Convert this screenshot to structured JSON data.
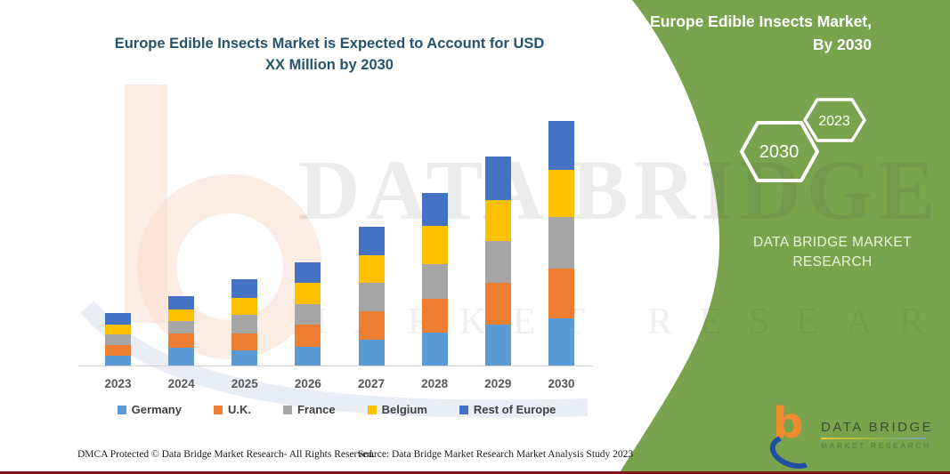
{
  "header": {
    "title_line1": "Europe Edible Insects Market is Expected to Account for USD",
    "title_line2": "XX Million by 2030"
  },
  "panel": {
    "bg_color": "#7AA34D",
    "title_line1": "Europe Edible Insects Market,",
    "title_line2": "By 2030",
    "hexagons": [
      {
        "label": "2030"
      },
      {
        "label": "2023"
      }
    ],
    "brand_caps_line1": "DATA BRIDGE MARKET",
    "brand_caps_line2": "RESEARCH"
  },
  "logo": {
    "name": "DATA BRIDGE",
    "tagline": "MARKET RESEARCH"
  },
  "watermark": {
    "text_primary": "DATA BRIDGE",
    "text_secondary": "MARKET RESEARCH"
  },
  "footer": {
    "left": "DMCA Protected © Data Bridge Market Research-  All Rights Reserved.",
    "right": "Source: Data Bridge Market Research  Market Analysis Study 2023"
  },
  "chart_data": {
    "type": "bar",
    "stacked": true,
    "title": "Europe Edible Insects Market is Expected to Account for USD XX Million by 2030",
    "xlabel": "",
    "ylabel": "",
    "grid": false,
    "legend_position": "bottom",
    "categories": [
      "2023",
      "2024",
      "2025",
      "2026",
      "2027",
      "2028",
      "2029",
      "2030"
    ],
    "series": [
      {
        "name": "Germany",
        "color": "#5B9BD5",
        "values": [
          12,
          21,
          18,
          22,
          30,
          38,
          47,
          54
        ]
      },
      {
        "name": "U.K.",
        "color": "#ED7D31",
        "values": [
          12,
          16,
          19,
          25,
          32,
          38,
          47,
          56
        ]
      },
      {
        "name": "France",
        "color": "#A5A5A5",
        "values": [
          12,
          14,
          21,
          23,
          32,
          39,
          47,
          58
        ]
      },
      {
        "name": "Belgium",
        "color": "#FFC000",
        "values": [
          11,
          13,
          19,
          24,
          31,
          43,
          46,
          53
        ]
      },
      {
        "name": "Rest of Europe",
        "color": "#4472C4",
        "values": [
          13,
          15,
          21,
          23,
          32,
          37,
          49,
          55
        ]
      }
    ],
    "totals": [
      60,
      79,
      98,
      117,
      157,
      195,
      236,
      276
    ],
    "ylim": [
      0,
      300
    ],
    "value_units": "USD Million (exact values masked as XX in source)"
  }
}
